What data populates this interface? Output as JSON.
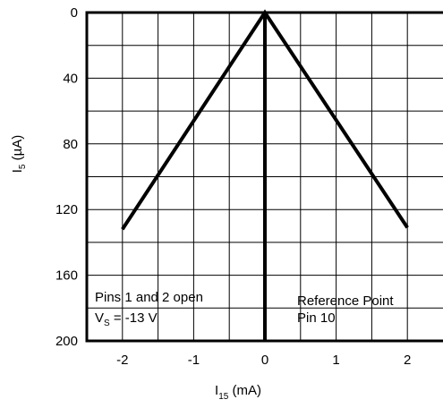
{
  "chart_data": {
    "type": "line",
    "xlabel": {
      "base": "I",
      "sub": "15",
      "rest": " (mA)"
    },
    "ylabel": {
      "base": "I",
      "sub": "5",
      "rest": " (µA)"
    },
    "xlim": [
      -2.5,
      2.5
    ],
    "ylim": [
      0,
      200
    ],
    "y_inverted": true,
    "grid": true,
    "x_ticks": [
      -2,
      -1,
      0,
      1,
      2
    ],
    "x_tick_labels": [
      "-2",
      "-1",
      "0",
      "1",
      "2"
    ],
    "y_ticks": [
      0,
      40,
      80,
      120,
      160,
      200
    ],
    "y_tick_labels": [
      "0",
      "40",
      "80",
      "120",
      "160",
      "200"
    ],
    "series": [
      {
        "x": [
          -2,
          0,
          2
        ],
        "y": [
          132,
          0,
          131
        ]
      }
    ],
    "annotations": {
      "left_line1": "Pins 1 and 2 open",
      "left_line2_base": "V",
      "left_line2_sub": "S",
      "left_line2_rest": " = -13 V",
      "right_line1": "Reference Point",
      "right_line2": "Pin 10"
    }
  }
}
